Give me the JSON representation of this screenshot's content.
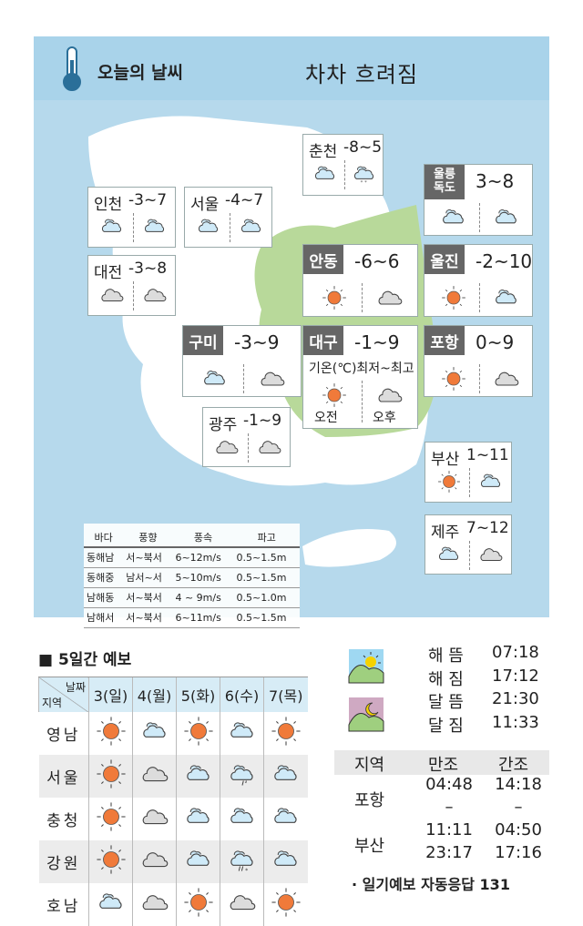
{
  "header": {
    "title": "오늘의 날씨",
    "summary": "차차 흐려짐"
  },
  "colors": {
    "sea": "#b6d9ec",
    "header": "#a9d3ea",
    "highlight_region": "#b8d99a",
    "label_bg": "#666666",
    "sun": "#f07a3a"
  },
  "legend": {
    "temp": "기온(℃)최저~최고",
    "am": "오전",
    "pm": "오후"
  },
  "cities": [
    {
      "name": "춘천",
      "temp": "-8~5",
      "am": "partly-cloudy",
      "pm": "snow",
      "style": "plain"
    },
    {
      "name": "인천",
      "temp": "-3~7",
      "am": "partly-cloudy",
      "pm": "partly-cloudy",
      "style": "plain"
    },
    {
      "name": "서울",
      "temp": "-4~7",
      "am": "partly-cloudy",
      "pm": "partly-cloudy",
      "style": "plain"
    },
    {
      "name": "대전",
      "temp": "-3~8",
      "am": "cloudy",
      "pm": "cloudy",
      "style": "plain"
    },
    {
      "name": "구미",
      "temp": "-3~9",
      "am": "partly-cloudy",
      "pm": "cloudy",
      "style": "label"
    },
    {
      "name": "광주",
      "temp": "-1~9",
      "am": "cloudy",
      "pm": "cloudy",
      "style": "plain"
    },
    {
      "name": "안동",
      "temp": "-6~6",
      "am": "sunny",
      "pm": "cloudy",
      "style": "label"
    },
    {
      "name": "대구",
      "temp": "-1~9",
      "am": "sunny",
      "pm": "cloudy",
      "style": "legend"
    },
    {
      "name": "울릉독도",
      "temp": "3~8",
      "am": "partly-cloudy",
      "pm": "partly-cloudy",
      "style": "label2"
    },
    {
      "name": "울진",
      "temp": "-2~10",
      "am": "sunny",
      "pm": "partly-cloudy",
      "style": "label"
    },
    {
      "name": "포항",
      "temp": "0~9",
      "am": "sunny",
      "pm": "cloudy",
      "style": "label"
    },
    {
      "name": "부산",
      "temp": "1~11",
      "am": "sunny",
      "pm": "partly-cloudy",
      "style": "small"
    },
    {
      "name": "제주",
      "temp": "7~12",
      "am": "partly-cloudy",
      "pm": "cloudy",
      "style": "small"
    }
  ],
  "sea": {
    "headers": [
      "바다",
      "풍향",
      "풍속",
      "파고"
    ],
    "rows": [
      [
        "동해남",
        "서~북서",
        "6~12m/s",
        "0.5~1.5m"
      ],
      [
        "동해중",
        "남서~서",
        "5~10m/s",
        "0.5~1.5m"
      ],
      [
        "남해동",
        "서~북서",
        "4 ~ 9m/s",
        "0.5~1.0m"
      ],
      [
        "남해서",
        "서~북서",
        "6~11m/s",
        "0.5~1.5m"
      ]
    ]
  },
  "forecast": {
    "title": "■ 5일간 예보",
    "corner_top": "날짜",
    "corner_bottom": "지역",
    "days": [
      "3(일)",
      "4(월)",
      "5(화)",
      "6(수)",
      "7(목)"
    ],
    "rows": [
      {
        "region": "영남",
        "icons": [
          "sunny",
          "partly-cloudy",
          "sunny",
          "partly-cloudy",
          "sunny"
        ]
      },
      {
        "region": "서울",
        "icons": [
          "sunny",
          "cloudy",
          "partly-cloudy",
          "rain",
          "partly-cloudy"
        ]
      },
      {
        "region": "충청",
        "icons": [
          "sunny",
          "cloudy",
          "partly-cloudy",
          "partly-cloudy",
          "partly-cloudy"
        ]
      },
      {
        "region": "강원",
        "icons": [
          "sunny",
          "cloudy",
          "partly-cloudy",
          "rain-snow",
          "partly-cloudy"
        ]
      },
      {
        "region": "호남",
        "icons": [
          "partly-cloudy",
          "cloudy",
          "sunny",
          "cloudy",
          "sunny"
        ]
      }
    ]
  },
  "sunmoon": [
    {
      "label": "해 뜸",
      "time": "07:18"
    },
    {
      "label": "해 짐",
      "time": "17:12"
    },
    {
      "label": "달 뜸",
      "time": "21:30"
    },
    {
      "label": "달 짐",
      "time": "11:33"
    }
  ],
  "tide": {
    "headers": [
      "지역",
      "만조",
      "간조"
    ],
    "rows": [
      {
        "region": "포항",
        "high": [
          "04:48",
          "–"
        ],
        "low": [
          "14:18",
          "–"
        ]
      },
      {
        "region": "부산",
        "high": [
          "11:11",
          "23:17"
        ],
        "low": [
          "04:50",
          "17:16"
        ]
      }
    ]
  },
  "footer": "· 일기예보 자동응답 131"
}
